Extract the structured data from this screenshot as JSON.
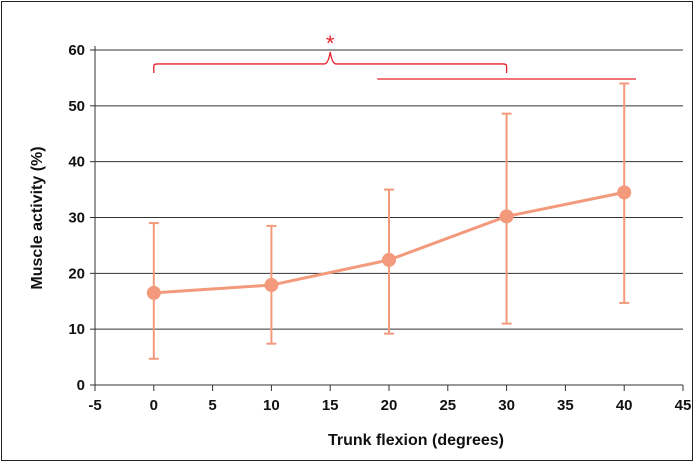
{
  "chart_data": {
    "type": "line",
    "xlabel": "Trunk flexion (degrees)",
    "ylabel": "Muscle activity (%)",
    "xlim": [
      -5,
      45
    ],
    "ylim": [
      0,
      60
    ],
    "x_ticks": [
      -5,
      0,
      5,
      10,
      15,
      20,
      25,
      30,
      35,
      40,
      45
    ],
    "y_ticks": [
      0,
      10,
      20,
      30,
      40,
      50,
      60
    ],
    "grid": "horizontal",
    "series": [
      {
        "x": [
          0,
          10,
          20,
          30,
          40
        ],
        "values": [
          16.5,
          17.9,
          22.4,
          30.2,
          34.5
        ],
        "error_low": [
          4.7,
          7.4,
          9.2,
          11.0,
          14.7
        ],
        "error_high": [
          29.0,
          28.5,
          35.0,
          48.6,
          54.0
        ]
      }
    ],
    "annotation": {
      "symbol": "*",
      "brackets": [
        {
          "x_start": 0,
          "x_end": 30,
          "y": 57.5,
          "apex_x": 15
        },
        {
          "x_start": 19,
          "x_end": 41,
          "y": 54.8
        }
      ]
    },
    "colors": {
      "series": "#f39a7c",
      "annotation": "#e8202a",
      "grid": "#333333"
    }
  }
}
